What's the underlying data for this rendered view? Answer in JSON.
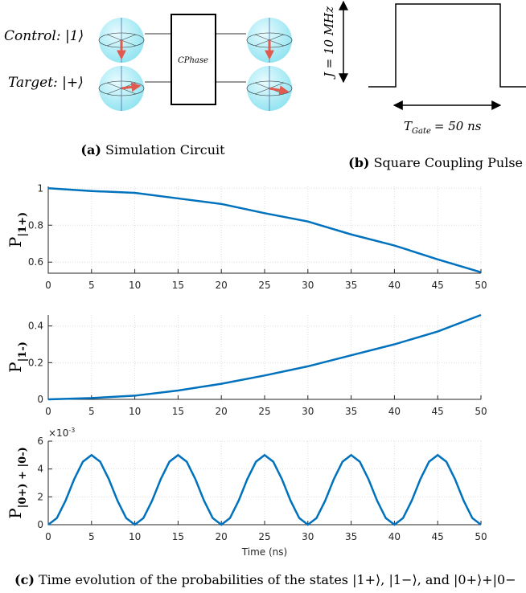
{
  "circuit": {
    "control_label": "Control: |1⟩",
    "target_label": "Target: |+⟩",
    "gate_label": "CPhase",
    "caption_tag": "(a)",
    "caption": "Simulation Circuit"
  },
  "pulse": {
    "amplitude_label": "J = 10 MHz",
    "duration_label": "T",
    "duration_sub": "Gate",
    "duration_value": "= 50 ns",
    "caption_tag": "(b)",
    "caption": "Square Coupling Pulse"
  },
  "chart_data": [
    {
      "type": "line",
      "ylabel": "P",
      "ylabel_sub": "|1+)",
      "color": "#0072bd",
      "grid": true,
      "x": [
        0,
        5,
        10,
        15,
        20,
        25,
        30,
        35,
        40,
        45,
        50
      ],
      "values": [
        1.0,
        0.985,
        0.975,
        0.945,
        0.915,
        0.865,
        0.82,
        0.75,
        0.69,
        0.615,
        0.545
      ],
      "xlim": [
        0,
        50
      ],
      "xticks": [
        0,
        5,
        10,
        15,
        20,
        25,
        30,
        35,
        40,
        45,
        50
      ],
      "ylim": [
        0.54,
        1.01
      ],
      "yticks": [
        0.6,
        0.8,
        1
      ]
    },
    {
      "type": "line",
      "ylabel": "P",
      "ylabel_sub": "|1-)",
      "color": "#0072bd",
      "grid": true,
      "x": [
        0,
        5,
        10,
        15,
        20,
        25,
        30,
        35,
        40,
        45,
        50
      ],
      "values": [
        0,
        0.007,
        0.02,
        0.048,
        0.085,
        0.13,
        0.18,
        0.24,
        0.3,
        0.37,
        0.46
      ],
      "xlim": [
        0,
        50
      ],
      "xticks": [
        0,
        5,
        10,
        15,
        20,
        25,
        30,
        35,
        40,
        45,
        50
      ],
      "ylim": [
        0,
        0.46
      ],
      "yticks": [
        0,
        0.2,
        0.4
      ]
    },
    {
      "type": "line",
      "ylabel": "P",
      "ylabel_sub": "|0+) + |0-)",
      "multiplier": "×10",
      "multiplier_exp": "-3",
      "xlabel": "Time (ns)",
      "color": "#0072bd",
      "grid": true,
      "x": [
        0,
        1,
        2,
        3,
        4,
        5,
        6,
        7,
        8,
        9,
        10,
        11,
        12,
        13,
        14,
        15,
        16,
        17,
        18,
        19,
        20,
        21,
        22,
        23,
        24,
        25,
        26,
        27,
        28,
        29,
        30,
        31,
        32,
        33,
        34,
        35,
        36,
        37,
        38,
        39,
        40,
        41,
        42,
        43,
        44,
        45,
        46,
        47,
        48,
        49,
        50
      ],
      "values": [
        0,
        0.477,
        1.727,
        3.273,
        4.523,
        5,
        4.523,
        3.273,
        1.727,
        0.477,
        0,
        0.477,
        1.727,
        3.273,
        4.523,
        5,
        4.523,
        3.273,
        1.727,
        0.477,
        0,
        0.477,
        1.727,
        3.273,
        4.523,
        5,
        4.523,
        3.273,
        1.727,
        0.477,
        0,
        0.477,
        1.727,
        3.273,
        4.523,
        5,
        4.523,
        3.273,
        1.727,
        0.477,
        0,
        0.477,
        1.727,
        3.273,
        4.523,
        5,
        4.523,
        3.273,
        1.727,
        0.477,
        0
      ],
      "xlim": [
        0,
        50
      ],
      "xticks": [
        0,
        5,
        10,
        15,
        20,
        25,
        30,
        35,
        40,
        45,
        50
      ],
      "ylim": [
        0,
        6
      ],
      "yticks": [
        0,
        2,
        4,
        6
      ]
    }
  ],
  "caption": {
    "tag": "(c)",
    "text": "Time evolution of the probabilities of the states |1+⟩, |1−⟩, and |0+⟩+|0−"
  }
}
